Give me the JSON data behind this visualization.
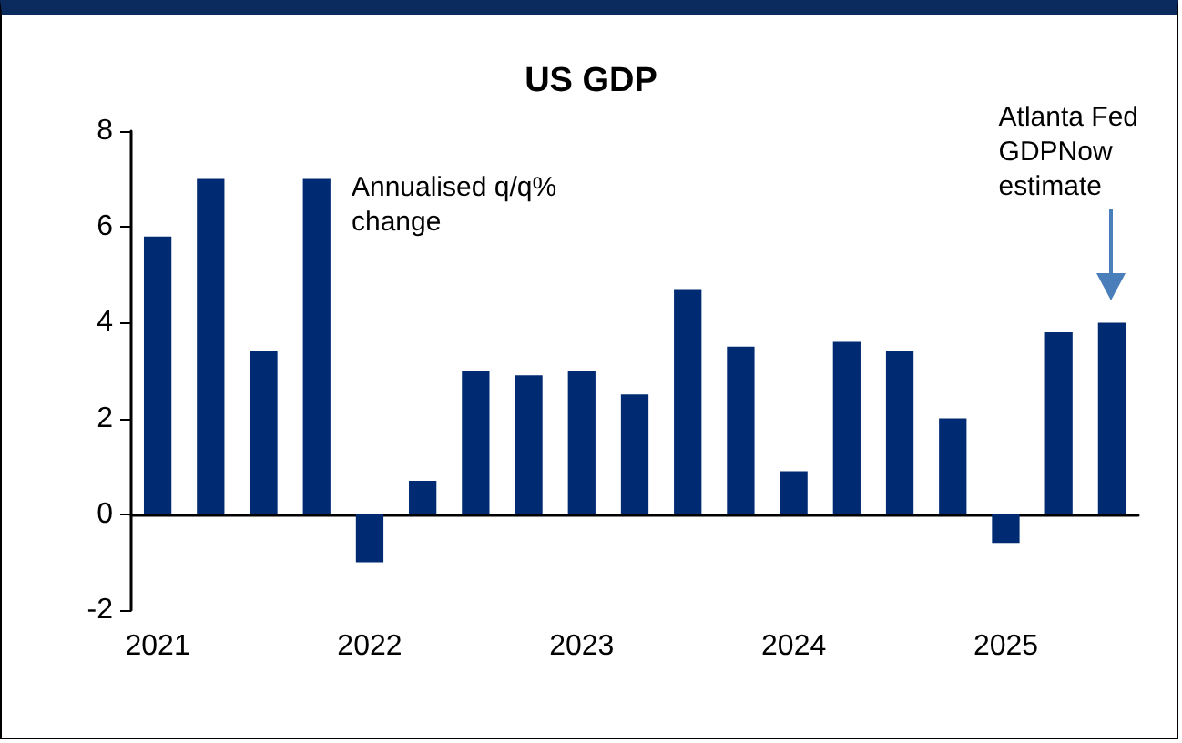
{
  "chart_data": {
    "type": "bar",
    "title": "US GDP",
    "categories": [
      "2021",
      null,
      null,
      null,
      "2022",
      null,
      null,
      null,
      "2023",
      null,
      null,
      null,
      "2024",
      null,
      null,
      null,
      "2025",
      null,
      null
    ],
    "values": [
      5.8,
      7.0,
      3.4,
      7.0,
      -1.0,
      0.7,
      3.0,
      2.9,
      3.0,
      2.5,
      4.7,
      3.5,
      0.9,
      3.6,
      3.4,
      2.0,
      -0.6,
      3.8,
      4.0
    ],
    "color": "#002b73",
    "ylim": [
      -2,
      8
    ],
    "yticks": [
      -2,
      0,
      2,
      4,
      6,
      8
    ],
    "annotations": [
      "Annualised q/q% change",
      "Atlanta Fed GDPNow estimate"
    ]
  }
}
